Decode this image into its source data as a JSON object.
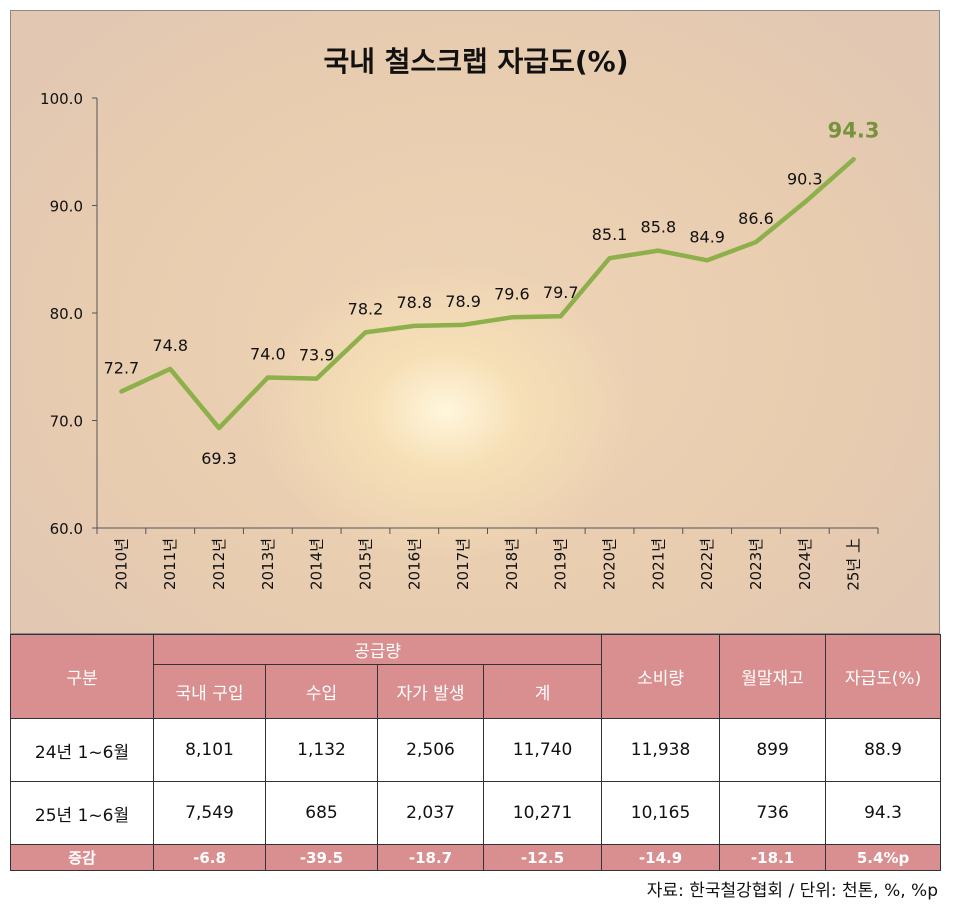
{
  "chart_data": {
    "type": "line",
    "title": "국내 철스크랩 자급도(%)",
    "categories": [
      "2010년",
      "2011년",
      "2012년",
      "2013년",
      "2014년",
      "2015년",
      "2016년",
      "2017년",
      "2018년",
      "2019년",
      "2020년",
      "2021년",
      "2022년",
      "2023년",
      "2024년",
      "25년 上"
    ],
    "series": [
      {
        "values": [
          72.7,
          74.8,
          69.3,
          74.0,
          73.9,
          78.2,
          78.8,
          78.9,
          79.6,
          79.7,
          85.1,
          85.8,
          84.9,
          86.6,
          90.3,
          94.3
        ]
      }
    ],
    "ylim": [
      60.0,
      100.0
    ],
    "yticks": [
      "60.0",
      "70.0",
      "80.0",
      "90.0",
      "100.0"
    ],
    "line_color": "#8db04a",
    "highlight_color": "#76933c",
    "grid": false
  },
  "table": {
    "header_group": "공급량",
    "col_category": "구분",
    "col_domestic": "국내 구입",
    "col_import": "수입",
    "col_self": "자가 발생",
    "col_total": "계",
    "col_consumption": "소비량",
    "col_inventory": "월말재고",
    "col_ratio": "자급도(%)",
    "rows": [
      {
        "label": "24년 1~6월",
        "domestic": "8,101",
        "import": "1,132",
        "self": "2,506",
        "total": "11,740",
        "consumption": "11,938",
        "inventory": "899",
        "ratio": "88.9"
      },
      {
        "label": "25년 1~6월",
        "domestic": "7,549",
        "import": "685",
        "self": "2,037",
        "total": "10,271",
        "consumption": "10,165",
        "inventory": "736",
        "ratio": "94.3"
      }
    ],
    "change": {
      "label": "증감",
      "domestic": "-6.8",
      "import": "-39.5",
      "self": "-18.7",
      "total": "-12.5",
      "consumption": "-14.9",
      "inventory": "-18.1",
      "ratio": "5.4%p"
    },
    "header_color": "#d98f8f"
  },
  "source": "자료: 한국철강협회 / 단위: 천톤, %, %p"
}
